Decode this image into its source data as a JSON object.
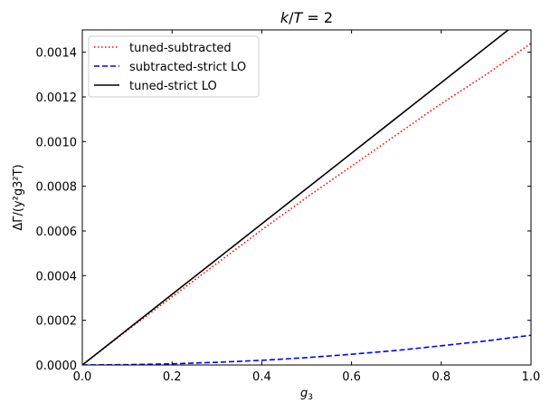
{
  "chart_data": {
    "type": "line",
    "title": "k/T = 2",
    "xlabel": "g3",
    "ylabel": "ΔΓ/(y²g3²T)",
    "xlim": [
      0,
      1
    ],
    "ylim": [
      0,
      0.0015
    ],
    "xticks": [
      0,
      0.2,
      0.4,
      0.6,
      0.8,
      1.0
    ],
    "xtick_labels": [
      "0.0",
      "0.2",
      "0.4",
      "0.6",
      "0.8",
      "1.0"
    ],
    "yticks": [
      0,
      0.0002,
      0.0004,
      0.0006,
      0.0008,
      0.001,
      0.0012,
      0.0014
    ],
    "ytick_labels": [
      "0.0000",
      "0.0002",
      "0.0004",
      "0.0006",
      "0.0008",
      "0.0010",
      "0.0012",
      "0.0014"
    ],
    "grid": false,
    "legend_position": "top-left",
    "x": [
      0,
      0.1,
      0.2,
      0.3,
      0.4,
      0.5,
      0.6,
      0.7,
      0.8,
      0.9,
      1.0
    ],
    "series": [
      {
        "name": "tuned-subtracted",
        "color": "#ff0000",
        "style": "dotted",
        "values": [
          0,
          0.000155,
          0.000305,
          0.000455,
          0.000605,
          0.00075,
          0.00089,
          0.00103,
          0.00117,
          0.0013,
          0.00144
        ]
      },
      {
        "name": "subtracted-strict LO",
        "color": "#0000ff",
        "style": "dashed",
        "values": [
          0,
          1.3e-06,
          5.3e-06,
          1.2e-05,
          2.1e-05,
          3.3e-05,
          4.8e-05,
          6.5e-05,
          8.6e-05,
          0.000108,
          0.000133
        ]
      },
      {
        "name": "tuned-strict LO",
        "color": "#000000",
        "style": "solid",
        "values": [
          0,
          0.000158,
          0.000316,
          0.000474,
          0.000632,
          0.00079,
          0.000948,
          0.001106,
          0.001264,
          0.001422,
          0.00158
        ]
      }
    ]
  }
}
